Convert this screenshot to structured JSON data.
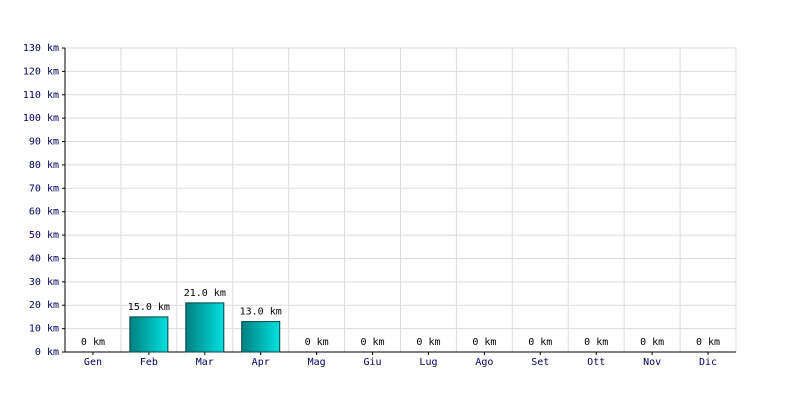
{
  "chart_data": {
    "type": "bar",
    "categories": [
      "Gen",
      "Feb",
      "Mar",
      "Apr",
      "Mag",
      "Giu",
      "Lug",
      "Ago",
      "Set",
      "Ott",
      "Nov",
      "Dic"
    ],
    "values": [
      0,
      15,
      21,
      13,
      0,
      0,
      0,
      0,
      0,
      0,
      0,
      0
    ],
    "value_labels": [
      "0 km",
      "15.0 km",
      "21.0 km",
      "13.0 km",
      "0 km",
      "0 km",
      "0 km",
      "0 km",
      "0 km",
      "0 km",
      "0 km",
      "0 km"
    ],
    "color": "#00e0e0",
    "ylim": [
      0,
      130
    ],
    "yticks": [
      {
        "value": 0,
        "label": "0 km"
      },
      {
        "value": 10,
        "label": "10 km"
      },
      {
        "value": 20,
        "label": "20 km"
      },
      {
        "value": 30,
        "label": "30 km"
      },
      {
        "value": 40,
        "label": "40 km"
      },
      {
        "value": 50,
        "label": "50 km"
      },
      {
        "value": 60,
        "label": "60 km"
      },
      {
        "value": 70,
        "label": "70 km"
      },
      {
        "value": 80,
        "label": "80 km"
      },
      {
        "value": 90,
        "label": "90 km"
      },
      {
        "value": 100,
        "label": "100 km"
      },
      {
        "value": 110,
        "label": "110 km"
      },
      {
        "value": 120,
        "label": "120 km"
      },
      {
        "value": 130,
        "label": "130 km"
      }
    ],
    "grid": true
  }
}
